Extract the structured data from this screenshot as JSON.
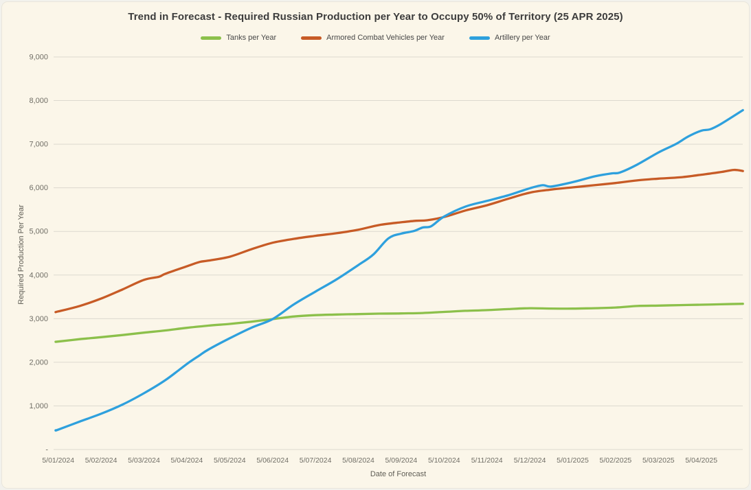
{
  "page": {
    "background_color": "#FBF6E9",
    "gridline_color": "#DCD9CF",
    "tick_label_color": "#6F6D65"
  },
  "chart_data": {
    "type": "line",
    "title": "Trend in Forecast - Required Russian Production per Year to Occupy 50% of Territory (25 APR 2025)",
    "xlabel": "Date of Forecast",
    "ylabel": "Required Production Per Year",
    "grid": "horizontal",
    "legend_position": "top-center",
    "ylim": [
      0,
      9000
    ],
    "y_ticks": [
      {
        "value": 0,
        "label": "-"
      },
      {
        "value": 1000,
        "label": "1,000"
      },
      {
        "value": 2000,
        "label": "2,000"
      },
      {
        "value": 3000,
        "label": "3,000"
      },
      {
        "value": 4000,
        "label": "4,000"
      },
      {
        "value": 5000,
        "label": "5,000"
      },
      {
        "value": 6000,
        "label": "6,000"
      },
      {
        "value": 7000,
        "label": "7,000"
      },
      {
        "value": 8000,
        "label": "8,000"
      },
      {
        "value": 9000,
        "label": "9,000"
      }
    ],
    "x_tick_labels": [
      "5/01/2024",
      "5/02/2024",
      "5/03/2024",
      "5/04/2024",
      "5/05/2024",
      "5/06/2024",
      "5/07/2024",
      "5/08/2024",
      "5/09/2024",
      "5/10/2024",
      "5/11/2024",
      "5/12/2024",
      "5/01/2025",
      "5/02/2025",
      "5/03/2025",
      "5/04/2025"
    ],
    "x_range_in_tick_units": [
      -0.11,
      15.97
    ],
    "series": [
      {
        "name": "Tanks per Year",
        "color": "#8CC04B",
        "points": [
          [
            -0.06,
            2470
          ],
          [
            0,
            2475
          ],
          [
            0.5,
            2530
          ],
          [
            1,
            2575
          ],
          [
            1.5,
            2625
          ],
          [
            2,
            2680
          ],
          [
            2.5,
            2730
          ],
          [
            3,
            2790
          ],
          [
            3.5,
            2840
          ],
          [
            4,
            2880
          ],
          [
            4.5,
            2930
          ],
          [
            5,
            2990
          ],
          [
            5.5,
            3050
          ],
          [
            6,
            3080
          ],
          [
            6.5,
            3095
          ],
          [
            7,
            3105
          ],
          [
            7.5,
            3115
          ],
          [
            8,
            3120
          ],
          [
            8.5,
            3130
          ],
          [
            9,
            3155
          ],
          [
            9.5,
            3180
          ],
          [
            10,
            3195
          ],
          [
            10.5,
            3220
          ],
          [
            11,
            3240
          ],
          [
            11.5,
            3232
          ],
          [
            12,
            3230
          ],
          [
            12.5,
            3240
          ],
          [
            13,
            3255
          ],
          [
            13.5,
            3290
          ],
          [
            14,
            3300
          ],
          [
            14.5,
            3310
          ],
          [
            15,
            3320
          ],
          [
            15.45,
            3330
          ],
          [
            15.97,
            3340
          ]
        ]
      },
      {
        "name": "Armored Combat Vehicles per Year",
        "color": "#C75B26",
        "points": [
          [
            -0.06,
            3150
          ],
          [
            0,
            3165
          ],
          [
            0.5,
            3290
          ],
          [
            1,
            3460
          ],
          [
            1.5,
            3670
          ],
          [
            2,
            3890
          ],
          [
            2.35,
            3960
          ],
          [
            2.5,
            4030
          ],
          [
            3,
            4200
          ],
          [
            3.3,
            4300
          ],
          [
            3.5,
            4330
          ],
          [
            4,
            4420
          ],
          [
            4.5,
            4590
          ],
          [
            5,
            4740
          ],
          [
            5.5,
            4830
          ],
          [
            6,
            4900
          ],
          [
            6.5,
            4960
          ],
          [
            7,
            5040
          ],
          [
            7.5,
            5150
          ],
          [
            8,
            5210
          ],
          [
            8.35,
            5245
          ],
          [
            8.6,
            5255
          ],
          [
            9,
            5330
          ],
          [
            9.5,
            5480
          ],
          [
            10,
            5600
          ],
          [
            10.5,
            5750
          ],
          [
            11,
            5890
          ],
          [
            11.5,
            5960
          ],
          [
            12,
            6010
          ],
          [
            12.5,
            6060
          ],
          [
            13,
            6110
          ],
          [
            13.5,
            6170
          ],
          [
            14,
            6210
          ],
          [
            14.5,
            6240
          ],
          [
            15,
            6300
          ],
          [
            15.45,
            6360
          ],
          [
            15.76,
            6410
          ],
          [
            15.97,
            6385
          ]
        ]
      },
      {
        "name": "Artillery per Year",
        "color": "#2EA0DD",
        "points": [
          [
            -0.06,
            440
          ],
          [
            0,
            455
          ],
          [
            0.5,
            640
          ],
          [
            1,
            820
          ],
          [
            1.5,
            1030
          ],
          [
            2,
            1290
          ],
          [
            2.5,
            1590
          ],
          [
            3,
            1960
          ],
          [
            3.3,
            2160
          ],
          [
            3.5,
            2290
          ],
          [
            4,
            2550
          ],
          [
            4.5,
            2790
          ],
          [
            5,
            2990
          ],
          [
            5.5,
            3330
          ],
          [
            6,
            3620
          ],
          [
            6.5,
            3905
          ],
          [
            7,
            4230
          ],
          [
            7.35,
            4470
          ],
          [
            7.7,
            4840
          ],
          [
            8,
            4950
          ],
          [
            8.3,
            5010
          ],
          [
            8.5,
            5090
          ],
          [
            8.7,
            5120
          ],
          [
            9,
            5340
          ],
          [
            9.5,
            5570
          ],
          [
            10,
            5700
          ],
          [
            10.5,
            5830
          ],
          [
            11,
            5990
          ],
          [
            11.3,
            6060
          ],
          [
            11.5,
            6030
          ],
          [
            12,
            6130
          ],
          [
            12.5,
            6260
          ],
          [
            12.9,
            6330
          ],
          [
            13.1,
            6350
          ],
          [
            13.5,
            6530
          ],
          [
            14,
            6810
          ],
          [
            14.4,
            7000
          ],
          [
            14.7,
            7180
          ],
          [
            15,
            7310
          ],
          [
            15.2,
            7340
          ],
          [
            15.45,
            7460
          ],
          [
            15.97,
            7780
          ]
        ]
      }
    ]
  }
}
